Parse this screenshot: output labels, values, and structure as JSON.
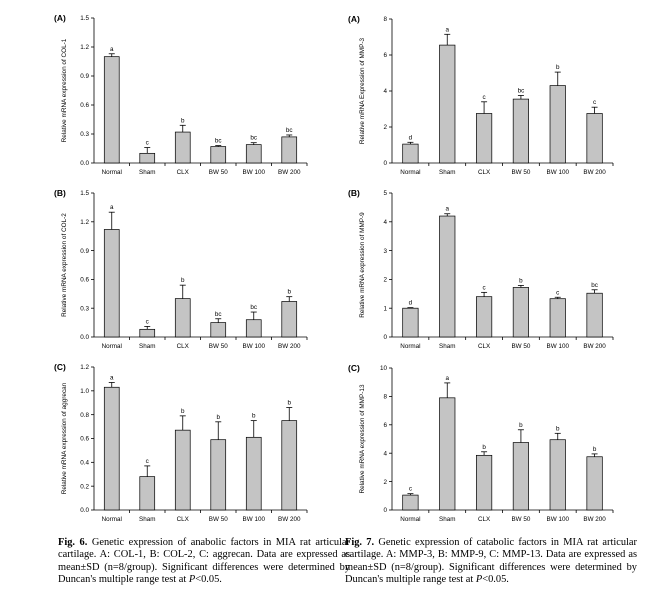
{
  "chart_data": [
    {
      "id": "fig6A",
      "letter": "(A)",
      "type": "bar",
      "ylabel": "Relative mRNA expression of COL-1",
      "ylim": [
        0,
        1.5
      ],
      "yticks": [
        "0.0",
        "0.3",
        "0.6",
        "0.9",
        "1.2",
        "1.5"
      ],
      "categories": [
        "Normal",
        "Sham",
        "CLX",
        "BW 50",
        "BW 100",
        "BW 200"
      ],
      "values": [
        1.1,
        0.1,
        0.32,
        0.17,
        0.19,
        0.27
      ],
      "errors": [
        0.03,
        0.06,
        0.07,
        0.01,
        0.02,
        0.02
      ],
      "letters": [
        "a",
        "c",
        "b",
        "bc",
        "bc",
        "bc"
      ]
    },
    {
      "id": "fig6B",
      "letter": "(B)",
      "type": "bar",
      "ylabel": "Relative mRNA expression of COL-2",
      "ylim": [
        0,
        1.5
      ],
      "yticks": [
        "0.0",
        "0.3",
        "0.6",
        "0.9",
        "1.2",
        "1.5"
      ],
      "categories": [
        "Normal",
        "Sham",
        "CLX",
        "BW 50",
        "BW 100",
        "BW 200"
      ],
      "values": [
        1.12,
        0.08,
        0.4,
        0.15,
        0.18,
        0.37
      ],
      "errors": [
        0.18,
        0.03,
        0.14,
        0.04,
        0.08,
        0.05
      ],
      "letters": [
        "a",
        "c",
        "b",
        "bc",
        "bc",
        "b"
      ]
    },
    {
      "id": "fig6C",
      "letter": "(C)",
      "type": "bar",
      "ylabel": "Relative mRNA expression of aggrecan",
      "ylim": [
        0,
        1.2
      ],
      "yticks": [
        "0.0",
        "0.2",
        "0.4",
        "0.6",
        "0.8",
        "1.0",
        "1.2"
      ],
      "categories": [
        "Normal",
        "Sham",
        "CLX",
        "BW 50",
        "BW 100",
        "BW 200"
      ],
      "values": [
        1.03,
        0.28,
        0.67,
        0.59,
        0.61,
        0.75
      ],
      "errors": [
        0.04,
        0.09,
        0.12,
        0.15,
        0.14,
        0.11
      ],
      "letters": [
        "a",
        "c",
        "b",
        "b",
        "b",
        "b"
      ]
    },
    {
      "id": "fig7A",
      "letter": "(A)",
      "type": "bar",
      "ylabel": "Relative mRNA Expression of MMP-3",
      "ylim": [
        0,
        8
      ],
      "yticks": [
        "0",
        "2",
        "4",
        "6",
        "8"
      ],
      "categories": [
        "Normal",
        "Sham",
        "CLX",
        "BW 50",
        "BW 100",
        "BW 200"
      ],
      "values": [
        1.05,
        6.55,
        2.75,
        3.55,
        4.3,
        2.75
      ],
      "errors": [
        0.1,
        0.6,
        0.65,
        0.2,
        0.75,
        0.35
      ],
      "letters": [
        "d",
        "a",
        "c",
        "bc",
        "b",
        "c"
      ]
    },
    {
      "id": "fig7B",
      "letter": "(B)",
      "type": "bar",
      "ylabel": "Relative mRNA expression of MMP-9",
      "ylim": [
        0,
        5
      ],
      "yticks": [
        "0",
        "1",
        "2",
        "3",
        "4",
        "5"
      ],
      "categories": [
        "Normal",
        "Sham",
        "CLX",
        "BW 50",
        "BW 100",
        "BW 200"
      ],
      "values": [
        1.0,
        4.2,
        1.4,
        1.72,
        1.33,
        1.52
      ],
      "errors": [
        0.02,
        0.08,
        0.15,
        0.07,
        0.05,
        0.12
      ],
      "letters": [
        "d",
        "a",
        "c",
        "b",
        "c",
        "bc"
      ]
    },
    {
      "id": "fig7C",
      "letter": "(C)",
      "type": "bar",
      "ylabel": "Relative mRNA expression of MMP-13",
      "ylim": [
        0,
        10
      ],
      "yticks": [
        "0",
        "2",
        "4",
        "6",
        "8",
        "10"
      ],
      "categories": [
        "Normal",
        "Sham",
        "CLX",
        "BW 50",
        "BW 100",
        "BW 200"
      ],
      "values": [
        1.05,
        7.9,
        3.85,
        4.75,
        4.95,
        3.75
      ],
      "errors": [
        0.1,
        1.05,
        0.25,
        0.9,
        0.45,
        0.2
      ],
      "letters": [
        "c",
        "a",
        "b",
        "b",
        "b",
        "b"
      ]
    }
  ],
  "captions": {
    "fig6": {
      "label": "Fig. 6.",
      "text_before_p": "Genetic expression of anabolic factors in MIA rat articular cartilage. A: COL-1, B: COL-2, C: aggrecan. Data are expressed as mean±SD (n=8/group). Significant differences were determined by Duncan's multiple range test at",
      "p_symbol": "P",
      "text_after_p": "<0.05."
    },
    "fig7": {
      "label": "Fig. 7.",
      "text_before_p": "Genetic expression of catabolic factors in MIA rat articular cartilage. A: MMP-3, B: MMP-9, C: MMP-13. Data are expressed as mean±SD (n=8/group). Significant differences were determined by Duncan's multiple range test at",
      "p_symbol": "P",
      "text_after_p": "<0.05."
    }
  },
  "colors": {
    "bar_fill": "#c4c4c4",
    "bar_stroke": "#000000",
    "axis": "#000000"
  }
}
